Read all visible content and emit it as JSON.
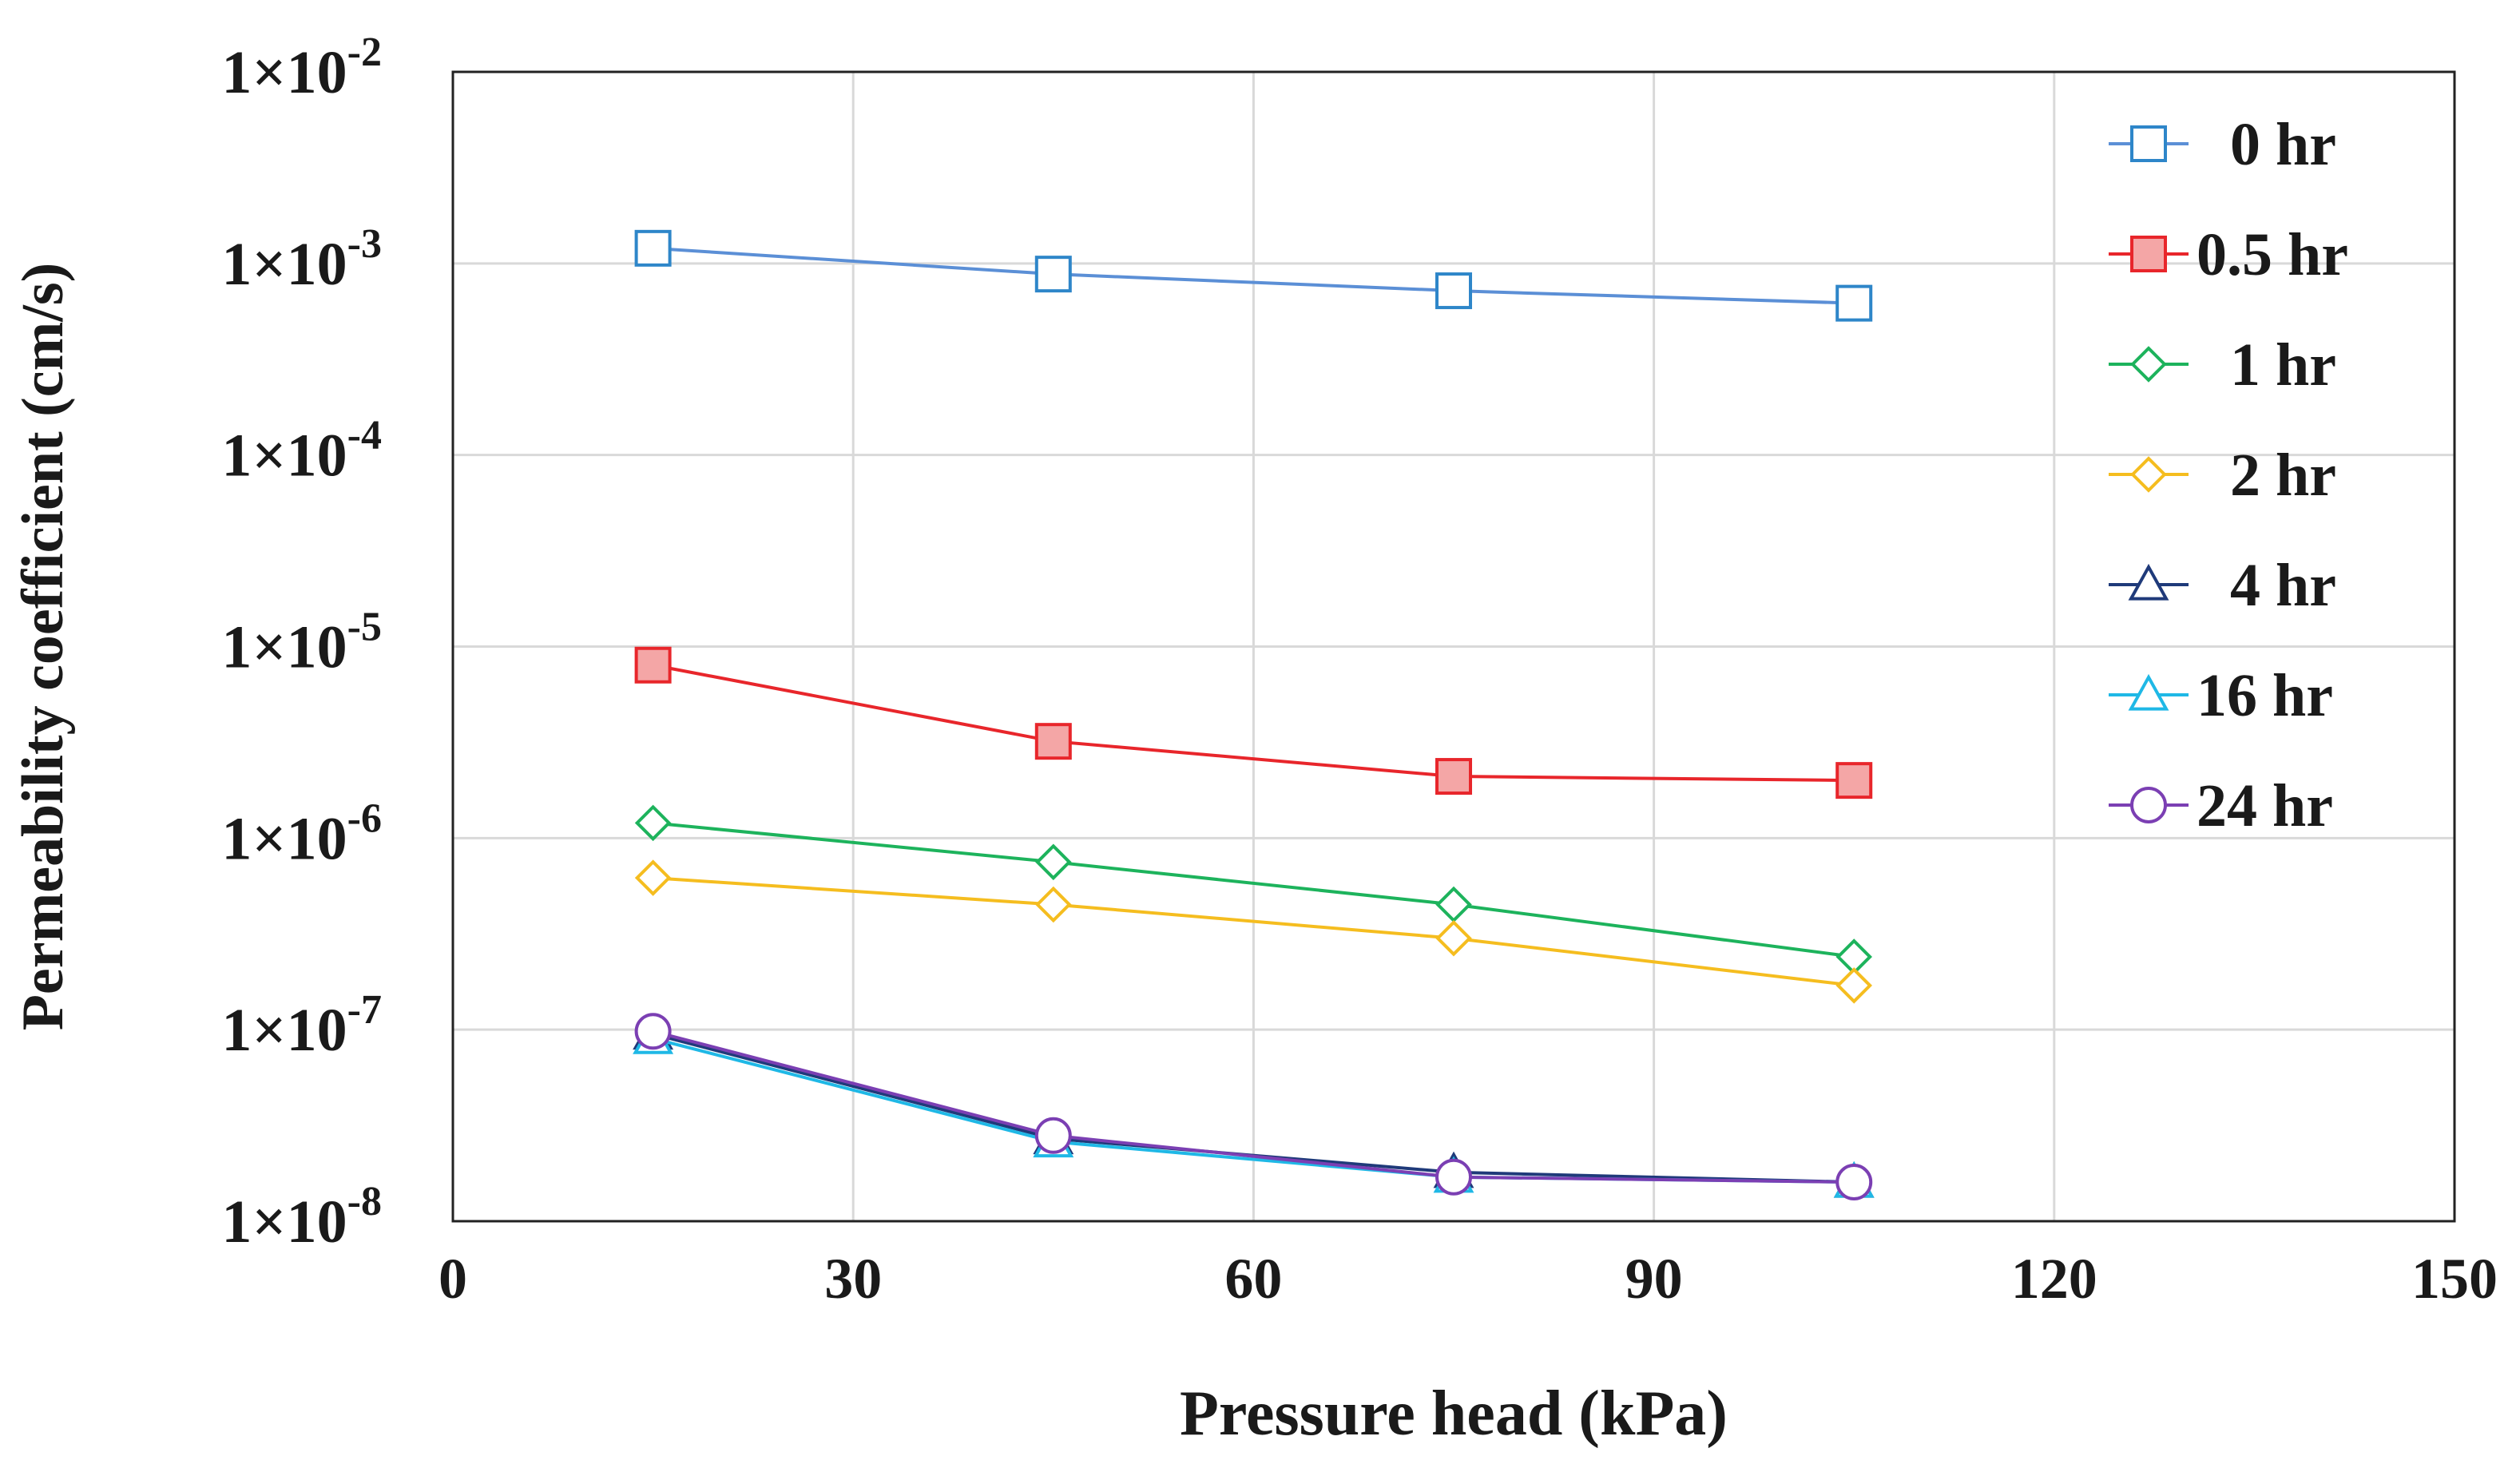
{
  "chart_data": {
    "type": "line",
    "title": "",
    "xlabel": "Pressure head (kPa)",
    "ylabel": "Permeability coefficient (cm/s)",
    "x_scale": "linear",
    "y_scale": "log",
    "xlim": [
      0,
      150
    ],
    "ylim": [
      1e-08,
      0.01
    ],
    "x_ticks": [
      0,
      30,
      60,
      90,
      120,
      150
    ],
    "x_tick_labels": [
      "0",
      "30",
      "60",
      "90",
      "120",
      "150"
    ],
    "y_ticks": [
      {
        "value": 0.01,
        "mantissa": "1×10",
        "exponent": "-2"
      },
      {
        "value": 0.001,
        "mantissa": "1×10",
        "exponent": "-3"
      },
      {
        "value": 0.0001,
        "mantissa": "1×10",
        "exponent": "-4"
      },
      {
        "value": 1e-05,
        "mantissa": "1×10",
        "exponent": "-5"
      },
      {
        "value": 1e-06,
        "mantissa": "1×10",
        "exponent": "-6"
      },
      {
        "value": 1e-07,
        "mantissa": "1×10",
        "exponent": "-7"
      },
      {
        "value": 1e-08,
        "mantissa": "1×10",
        "exponent": "-8"
      }
    ],
    "grid": true,
    "legend_position": "right",
    "x": [
      15,
      45,
      75,
      105
    ],
    "series": [
      {
        "name": "0 hr",
        "marker": "square",
        "filled": false,
        "color": "#2e86c9",
        "line_color": "#5b8fd6",
        "values": [
          0.0012,
          0.00088,
          0.00072,
          0.00062
        ]
      },
      {
        "name": "0.5 hr",
        "marker": "square",
        "filled": true,
        "color": "#e8262b",
        "fill": "#f4a6a6",
        "line_color": "#e8262b",
        "values": [
          8e-06,
          3.2e-06,
          2.1e-06,
          2e-06
        ]
      },
      {
        "name": "1 hr",
        "marker": "diamond",
        "filled": false,
        "color": "#1db35c",
        "line_color": "#1db35c",
        "values": [
          1.2e-06,
          7.5e-07,
          4.5e-07,
          2.4e-07
        ]
      },
      {
        "name": "2 hr",
        "marker": "diamond",
        "filled": false,
        "color": "#f5bd1f",
        "line_color": "#f5bd1f",
        "values": [
          6.2e-07,
          4.5e-07,
          3e-07,
          1.7e-07
        ]
      },
      {
        "name": "4 hr",
        "marker": "triangle",
        "filled": false,
        "color": "#1f3a7a",
        "line_color": "#1f3a7a",
        "values": [
          9.5e-08,
          2.7e-08,
          1.8e-08,
          1.6e-08
        ]
      },
      {
        "name": "16 hr",
        "marker": "triangle",
        "filled": false,
        "color": "#1fb8e6",
        "line_color": "#1fb8e6",
        "values": [
          9e-08,
          2.6e-08,
          1.7e-08,
          1.6e-08
        ]
      },
      {
        "name": "24 hr",
        "marker": "circle",
        "filled": false,
        "color": "#7b3fb3",
        "line_color": "#7b3fb3",
        "values": [
          9.8e-08,
          2.8e-08,
          1.7e-08,
          1.6e-08
        ]
      }
    ]
  }
}
